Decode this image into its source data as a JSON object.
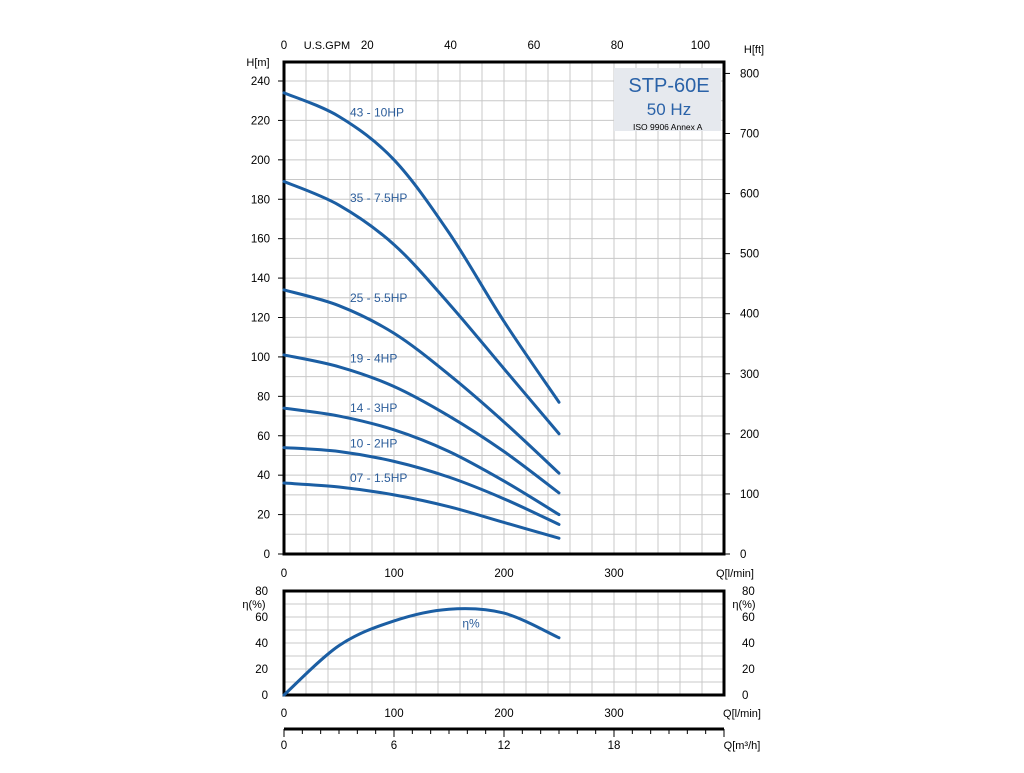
{
  "colors": {
    "curve": "#1b5ea3",
    "label": "#2c5d9a",
    "grid": "#c8c8c8",
    "frame": "#000000",
    "title_box": "#e6e9ee",
    "title_text": "#2a62a8"
  },
  "title_box": {
    "model": "STP-60E",
    "frequency": "50 Hz",
    "standard": "ISO 9906 Annex A"
  },
  "chart_data": [
    {
      "type": "line",
      "xlabel": "Q[l/min]",
      "ylabel": "H[m]",
      "ylabel_right": "H[ft]",
      "xlabel_top": "U.S.GPM",
      "xlim": [
        0,
        400
      ],
      "ylim": [
        0,
        250
      ],
      "grid": true,
      "x_ticks": [
        "0",
        "100",
        "200",
        "300"
      ],
      "y_ticks": [
        "0",
        "20",
        "40",
        "60",
        "80",
        "100",
        "120",
        "140",
        "160",
        "180",
        "200",
        "220",
        "240"
      ],
      "gpm_ticks": [
        "0",
        "20",
        "40",
        "60",
        "80",
        "100"
      ],
      "ft_ticks": [
        "0",
        "100",
        "200",
        "300",
        "400",
        "500",
        "600",
        "700",
        "800"
      ],
      "series": [
        {
          "name": "43 - 10HP",
          "x": [
            0,
            50,
            100,
            150,
            200,
            250
          ],
          "y": [
            234,
            222,
            200,
            163,
            118,
            77
          ]
        },
        {
          "name": "35 - 7.5HP",
          "x": [
            0,
            50,
            100,
            150,
            200,
            250
          ],
          "y": [
            189,
            177,
            157,
            127,
            94,
            61
          ]
        },
        {
          "name": "25 - 5.5HP",
          "x": [
            0,
            50,
            100,
            150,
            200,
            250
          ],
          "y": [
            134,
            126,
            112,
            91,
            67,
            41
          ]
        },
        {
          "name": "19 - 4HP",
          "x": [
            0,
            50,
            100,
            150,
            200,
            250
          ],
          "y": [
            101,
            95,
            85,
            70,
            52,
            31
          ]
        },
        {
          "name": "14 - 3HP",
          "x": [
            0,
            50,
            100,
            150,
            200,
            250
          ],
          "y": [
            74,
            70,
            63,
            52,
            37,
            20
          ]
        },
        {
          "name": "10 - 2HP",
          "x": [
            0,
            50,
            100,
            150,
            200,
            250
          ],
          "y": [
            54,
            52,
            47,
            39,
            28,
            15
          ]
        },
        {
          "name": "07 - 1.5HP",
          "x": [
            0,
            50,
            100,
            150,
            200,
            250
          ],
          "y": [
            36,
            34,
            30,
            24,
            16,
            8
          ]
        }
      ]
    },
    {
      "type": "line",
      "xlabel": "Q[l/min]",
      "ylabel": "η(%)",
      "xlim": [
        0,
        400
      ],
      "ylim": [
        0,
        80
      ],
      "grid": true,
      "x_ticks": [
        "0",
        "100",
        "200",
        "300"
      ],
      "y_ticks": [
        "0",
        "20",
        "40",
        "60",
        "80"
      ],
      "series": [
        {
          "name": "η%",
          "x": [
            0,
            50,
            100,
            150,
            200,
            250
          ],
          "y": [
            0,
            38,
            57,
            66,
            63,
            44
          ]
        }
      ]
    },
    {
      "type": "axis",
      "xlabel": "Q[m³/h]",
      "x_ticks": [
        "0",
        "6",
        "12",
        "18"
      ]
    }
  ]
}
